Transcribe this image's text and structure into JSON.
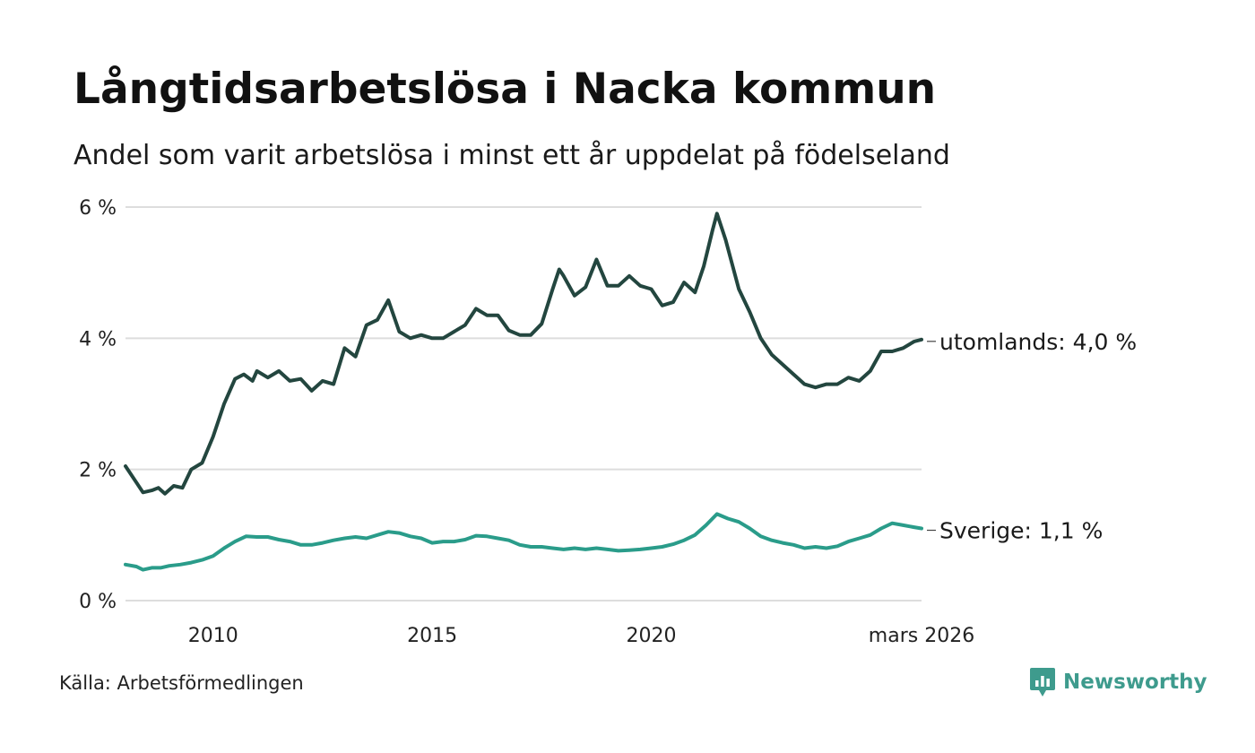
{
  "title": "Långtidsarbetslösa i Nacka kommun",
  "subtitle": "Andel som varit arbetslösa i minst ett år uppdelat på födelseland",
  "source": "Källa: Arbetsförmedlingen",
  "brand": {
    "name": "Newsworthy",
    "icon": "newsworthy-chart-icon"
  },
  "colors": {
    "utomlands": "#23463f",
    "sverige": "#2a9c8a",
    "grid": "#dddddd",
    "brand": "#3e9b8d"
  },
  "chart_data": {
    "type": "line",
    "title": "Långtidsarbetslösa i Nacka kommun",
    "ylim": [
      0,
      6
    ],
    "xlim": [
      2008.0,
      2026.17
    ],
    "y_ticks": [
      {
        "value": 0,
        "label": "0 %"
      },
      {
        "value": 2,
        "label": "2 %"
      },
      {
        "value": 4,
        "label": "4 %"
      },
      {
        "value": 6,
        "label": "6 %"
      }
    ],
    "x_ticks": [
      {
        "value": 2010,
        "label": "2010"
      },
      {
        "value": 2015,
        "label": "2015"
      },
      {
        "value": 2020,
        "label": "2020"
      },
      {
        "value": 2026.17,
        "label": "mars 2026"
      }
    ],
    "grid": true,
    "series": [
      {
        "name": "utomlands",
        "end_label": "utomlands: 4,0 %",
        "points": [
          [
            2008.0,
            2.05
          ],
          [
            2008.25,
            1.8
          ],
          [
            2008.4,
            1.65
          ],
          [
            2008.6,
            1.68
          ],
          [
            2008.75,
            1.72
          ],
          [
            2008.9,
            1.63
          ],
          [
            2009.1,
            1.75
          ],
          [
            2009.3,
            1.72
          ],
          [
            2009.5,
            2.0
          ],
          [
            2009.75,
            2.1
          ],
          [
            2010.0,
            2.5
          ],
          [
            2010.25,
            3.0
          ],
          [
            2010.5,
            3.38
          ],
          [
            2010.7,
            3.45
          ],
          [
            2010.9,
            3.35
          ],
          [
            2011.0,
            3.5
          ],
          [
            2011.25,
            3.4
          ],
          [
            2011.5,
            3.5
          ],
          [
            2011.75,
            3.35
          ],
          [
            2012.0,
            3.38
          ],
          [
            2012.25,
            3.2
          ],
          [
            2012.5,
            3.35
          ],
          [
            2012.75,
            3.3
          ],
          [
            2013.0,
            3.85
          ],
          [
            2013.25,
            3.72
          ],
          [
            2013.5,
            4.2
          ],
          [
            2013.75,
            4.28
          ],
          [
            2014.0,
            4.58
          ],
          [
            2014.25,
            4.1
          ],
          [
            2014.5,
            4.0
          ],
          [
            2014.75,
            4.05
          ],
          [
            2015.0,
            4.0
          ],
          [
            2015.25,
            4.0
          ],
          [
            2015.5,
            4.1
          ],
          [
            2015.75,
            4.2
          ],
          [
            2016.0,
            4.45
          ],
          [
            2016.25,
            4.35
          ],
          [
            2016.5,
            4.35
          ],
          [
            2016.75,
            4.12
          ],
          [
            2017.0,
            4.05
          ],
          [
            2017.25,
            4.05
          ],
          [
            2017.5,
            4.22
          ],
          [
            2017.75,
            4.75
          ],
          [
            2017.9,
            5.05
          ],
          [
            2018.0,
            4.95
          ],
          [
            2018.25,
            4.65
          ],
          [
            2018.5,
            4.78
          ],
          [
            2018.75,
            5.2
          ],
          [
            2019.0,
            4.8
          ],
          [
            2019.25,
            4.8
          ],
          [
            2019.5,
            4.95
          ],
          [
            2019.75,
            4.8
          ],
          [
            2020.0,
            4.75
          ],
          [
            2020.25,
            4.5
          ],
          [
            2020.5,
            4.55
          ],
          [
            2020.75,
            4.85
          ],
          [
            2021.0,
            4.7
          ],
          [
            2021.2,
            5.1
          ],
          [
            2021.4,
            5.65
          ],
          [
            2021.5,
            5.9
          ],
          [
            2021.7,
            5.5
          ],
          [
            2022.0,
            4.75
          ],
          [
            2022.25,
            4.4
          ],
          [
            2022.5,
            4.0
          ],
          [
            2022.75,
            3.75
          ],
          [
            2023.0,
            3.6
          ],
          [
            2023.25,
            3.45
          ],
          [
            2023.5,
            3.3
          ],
          [
            2023.75,
            3.25
          ],
          [
            2024.0,
            3.3
          ],
          [
            2024.25,
            3.3
          ],
          [
            2024.5,
            3.4
          ],
          [
            2024.75,
            3.35
          ],
          [
            2025.0,
            3.5
          ],
          [
            2025.25,
            3.8
          ],
          [
            2025.5,
            3.8
          ],
          [
            2025.75,
            3.85
          ],
          [
            2026.0,
            3.95
          ],
          [
            2026.17,
            3.98
          ]
        ]
      },
      {
        "name": "Sverige",
        "end_label": "Sverige: 1,1 %",
        "points": [
          [
            2008.0,
            0.55
          ],
          [
            2008.25,
            0.52
          ],
          [
            2008.4,
            0.47
          ],
          [
            2008.6,
            0.5
          ],
          [
            2008.8,
            0.5
          ],
          [
            2009.0,
            0.53
          ],
          [
            2009.25,
            0.55
          ],
          [
            2009.5,
            0.58
          ],
          [
            2009.75,
            0.62
          ],
          [
            2010.0,
            0.68
          ],
          [
            2010.25,
            0.8
          ],
          [
            2010.5,
            0.9
          ],
          [
            2010.75,
            0.98
          ],
          [
            2011.0,
            0.97
          ],
          [
            2011.25,
            0.97
          ],
          [
            2011.5,
            0.93
          ],
          [
            2011.75,
            0.9
          ],
          [
            2012.0,
            0.85
          ],
          [
            2012.25,
            0.85
          ],
          [
            2012.5,
            0.88
          ],
          [
            2012.75,
            0.92
          ],
          [
            2013.0,
            0.95
          ],
          [
            2013.25,
            0.97
          ],
          [
            2013.5,
            0.95
          ],
          [
            2013.75,
            1.0
          ],
          [
            2014.0,
            1.05
          ],
          [
            2014.25,
            1.03
          ],
          [
            2014.5,
            0.98
          ],
          [
            2014.75,
            0.95
          ],
          [
            2015.0,
            0.88
          ],
          [
            2015.25,
            0.9
          ],
          [
            2015.5,
            0.9
          ],
          [
            2015.75,
            0.93
          ],
          [
            2016.0,
            0.99
          ],
          [
            2016.25,
            0.98
          ],
          [
            2016.5,
            0.95
          ],
          [
            2016.75,
            0.92
          ],
          [
            2017.0,
            0.85
          ],
          [
            2017.25,
            0.82
          ],
          [
            2017.5,
            0.82
          ],
          [
            2017.75,
            0.8
          ],
          [
            2018.0,
            0.78
          ],
          [
            2018.25,
            0.8
          ],
          [
            2018.5,
            0.78
          ],
          [
            2018.75,
            0.8
          ],
          [
            2019.0,
            0.78
          ],
          [
            2019.25,
            0.76
          ],
          [
            2019.5,
            0.77
          ],
          [
            2019.75,
            0.78
          ],
          [
            2020.0,
            0.8
          ],
          [
            2020.25,
            0.82
          ],
          [
            2020.5,
            0.86
          ],
          [
            2020.75,
            0.92
          ],
          [
            2021.0,
            1.0
          ],
          [
            2021.25,
            1.15
          ],
          [
            2021.5,
            1.32
          ],
          [
            2021.75,
            1.25
          ],
          [
            2022.0,
            1.2
          ],
          [
            2022.25,
            1.1
          ],
          [
            2022.5,
            0.98
          ],
          [
            2022.75,
            0.92
          ],
          [
            2023.0,
            0.88
          ],
          [
            2023.25,
            0.85
          ],
          [
            2023.5,
            0.8
          ],
          [
            2023.75,
            0.82
          ],
          [
            2024.0,
            0.8
          ],
          [
            2024.25,
            0.83
          ],
          [
            2024.5,
            0.9
          ],
          [
            2024.75,
            0.95
          ],
          [
            2025.0,
            1.0
          ],
          [
            2025.25,
            1.1
          ],
          [
            2025.5,
            1.18
          ],
          [
            2025.75,
            1.15
          ],
          [
            2026.0,
            1.12
          ],
          [
            2026.17,
            1.1
          ]
        ]
      }
    ]
  }
}
